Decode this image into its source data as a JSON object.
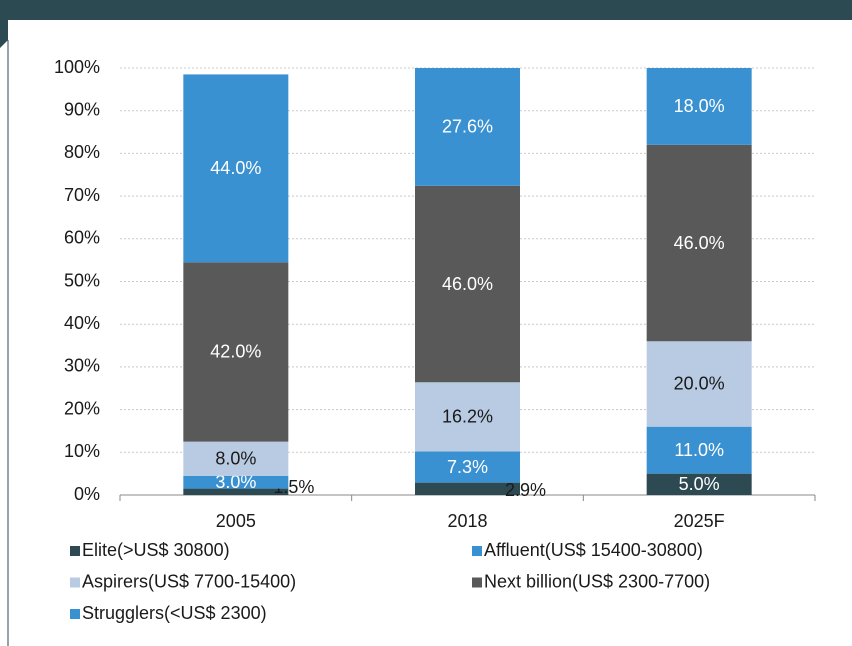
{
  "chart_data": {
    "type": "stacked_bar",
    "categories": [
      "2005",
      "2018",
      "2025F"
    ],
    "series": [
      {
        "name": "Elite(>US$ 30800)",
        "color": "#2d4a53",
        "values": [
          1.5,
          2.9,
          5.0
        ],
        "value_labels": [
          "1.5%",
          "2.9%",
          "5.0%"
        ]
      },
      {
        "name": "Affluent(US$ 15400-30800)",
        "color": "#3a91d1",
        "values": [
          3.0,
          7.3,
          11.0
        ],
        "value_labels": [
          "3.0%",
          "7.3%",
          "11.0%"
        ]
      },
      {
        "name": "Aspirers(US$ 7700-15400)",
        "color": "#b9cbe2",
        "values": [
          8.0,
          16.2,
          20.0
        ],
        "value_labels": [
          "8.0%",
          "16.2%",
          "20.0%"
        ]
      },
      {
        "name": "Next billion(US$ 2300-7700)",
        "color": "#595959",
        "values": [
          42.0,
          46.0,
          46.0
        ],
        "value_labels": [
          "42.0%",
          "46.0%",
          "46.0%"
        ]
      },
      {
        "name": "Strugglers(<US$ 2300)",
        "color": "#3a91d1",
        "values": [
          44.0,
          27.6,
          18.0
        ],
        "value_labels": [
          "44.0%",
          "27.6%",
          "18.0%"
        ]
      }
    ],
    "ylim": [
      0,
      100
    ],
    "yticks": [
      {
        "value": 0,
        "label": "0%"
      },
      {
        "value": 10,
        "label": "10%"
      },
      {
        "value": 20,
        "label": "20%"
      },
      {
        "value": 30,
        "label": "30%"
      },
      {
        "value": 40,
        "label": "40%"
      },
      {
        "value": 50,
        "label": "50%"
      },
      {
        "value": 60,
        "label": "60%"
      },
      {
        "value": 70,
        "label": "70%"
      },
      {
        "value": 80,
        "label": "80%"
      },
      {
        "value": 90,
        "label": "90%"
      },
      {
        "value": 100,
        "label": "100%"
      }
    ],
    "grid": true
  }
}
